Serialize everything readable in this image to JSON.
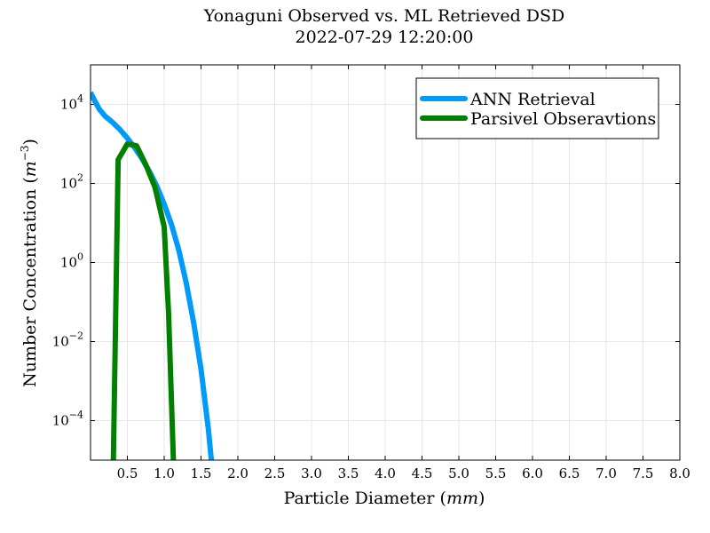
{
  "chart_data": {
    "type": "line",
    "title": "Yonaguni Observed vs. ML Retrieved DSD",
    "subtitle": "2022-07-29 12:20:00",
    "xlabel_text": "Particle Diameter (",
    "xlabel_unit": "mm",
    "xlabel_close": ")",
    "ylabel_text": "Number Concentration (",
    "ylabel_unit": "m",
    "ylabel_exp": "−3",
    "ylabel_close": ")",
    "xlim": [
      0.0,
      8.0
    ],
    "ylim_log10": [
      -5,
      5
    ],
    "yscale": "log",
    "grid": true,
    "legend_position": "top-right",
    "x_ticks": [
      {
        "v": 0.5,
        "label": "0.5"
      },
      {
        "v": 1.0,
        "label": "1.0"
      },
      {
        "v": 1.5,
        "label": "1.5"
      },
      {
        "v": 2.0,
        "label": "2.0"
      },
      {
        "v": 2.5,
        "label": "2.5"
      },
      {
        "v": 3.0,
        "label": "3.0"
      },
      {
        "v": 3.5,
        "label": "3.5"
      },
      {
        "v": 4.0,
        "label": "4.0"
      },
      {
        "v": 4.5,
        "label": "4.5"
      },
      {
        "v": 5.0,
        "label": "5.0"
      },
      {
        "v": 5.5,
        "label": "5.5"
      },
      {
        "v": 6.0,
        "label": "6.0"
      },
      {
        "v": 6.5,
        "label": "6.5"
      },
      {
        "v": 7.0,
        "label": "7.0"
      },
      {
        "v": 7.5,
        "label": "7.5"
      },
      {
        "v": 8.0,
        "label": "8.0"
      }
    ],
    "y_ticks": [
      {
        "exp": 4,
        "label_exp": "4"
      },
      {
        "exp": 2,
        "label_exp": "2"
      },
      {
        "exp": 0,
        "label_exp": "0"
      },
      {
        "exp": -2,
        "label_exp": "−2"
      },
      {
        "exp": -4,
        "label_exp": "−4"
      }
    ],
    "y_tick_base": "10",
    "series": [
      {
        "name": "ANN Retrieval",
        "color": "#009af9",
        "x": [
          0.0,
          0.06,
          0.12,
          0.2,
          0.3,
          0.4,
          0.5,
          0.6,
          0.7,
          0.8,
          0.9,
          1.0,
          1.1,
          1.2,
          1.3,
          1.4,
          1.5,
          1.6,
          1.64
        ],
        "y": [
          20000,
          12000,
          7500,
          5000,
          3500,
          2300,
          1400,
          800,
          420,
          200,
          85,
          30,
          9,
          2,
          0.3,
          0.03,
          0.002,
          6e-05,
          1e-05
        ]
      },
      {
        "name": "Parsivel Obseravtions",
        "color": "#008000",
        "x": [
          0.31,
          0.375,
          0.5,
          0.625,
          0.75,
          0.875,
          1.0,
          1.06,
          1.125
        ],
        "y": [
          1e-05,
          400,
          1000,
          900,
          300,
          80,
          8,
          0.05,
          1e-05
        ]
      }
    ]
  }
}
